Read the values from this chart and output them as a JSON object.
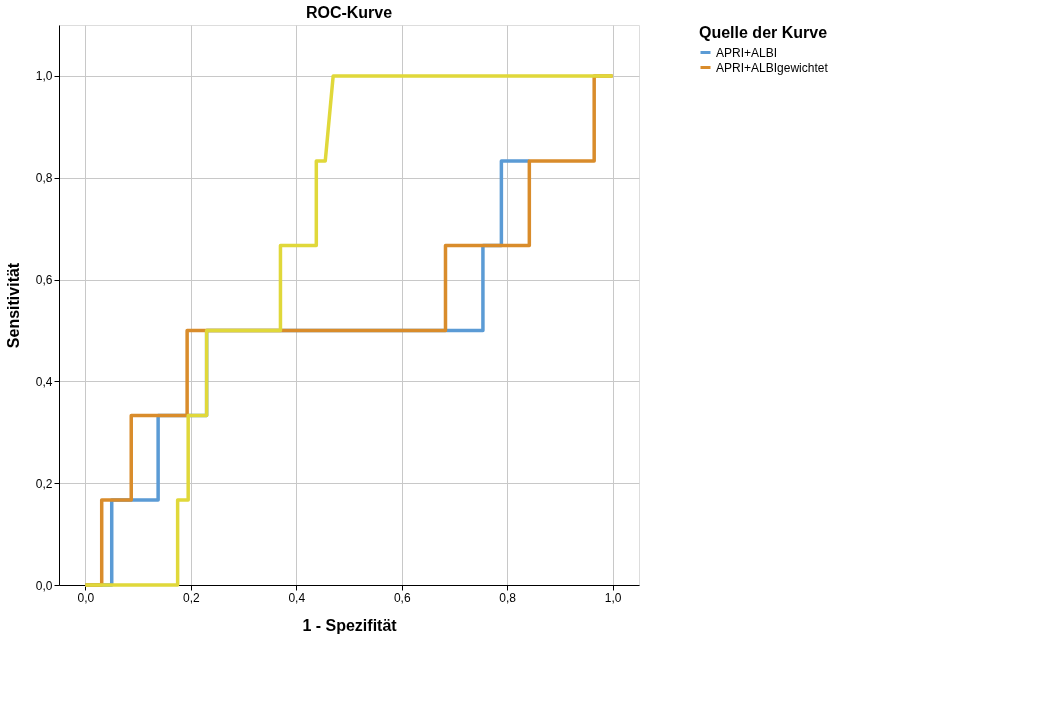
{
  "chart_data": {
    "type": "line",
    "title": "ROC-Kurve",
    "xlabel": "1 - Spezifität",
    "ylabel": "Sensitivität",
    "legend_title": "Quelle der Kurve",
    "xlim": [
      -0.05,
      1.05
    ],
    "ylim": [
      0,
      1.1
    ],
    "xticks": [
      {
        "value": 0,
        "label": "0,0"
      },
      {
        "value": 0.2,
        "label": "0,2"
      },
      {
        "value": 0.4,
        "label": "0,4"
      },
      {
        "value": 0.6,
        "label": "0,6"
      },
      {
        "value": 0.8,
        "label": "0,8"
      },
      {
        "value": 1,
        "label": "1,0"
      }
    ],
    "yticks": [
      {
        "value": 0,
        "label": "0,0"
      },
      {
        "value": 0.2,
        "label": "0,2"
      },
      {
        "value": 0.4,
        "label": "0,4"
      },
      {
        "value": 0.6,
        "label": "0,6"
      },
      {
        "value": 0.8,
        "label": "0,8"
      },
      {
        "value": 1,
        "label": "1,0"
      }
    ],
    "grid": true,
    "legend": "top right",
    "marker": "none",
    "line_style": "solid",
    "series": [
      {
        "name": "APRI+ALBI",
        "color": "#5b9bd5",
        "x": [
          0,
          0.05,
          0.05,
          0.138,
          0.138,
          0.23,
          0.23,
          0.754,
          0.754,
          0.789,
          0.789,
          0.842
        ],
        "values": [
          0,
          0,
          0.167,
          0.167,
          0.333,
          0.333,
          0.5,
          0.5,
          0.667,
          0.667,
          0.833,
          0.833
        ]
      },
      {
        "name": "APRI+ALBIgewichtet",
        "color": "#d98c2b",
        "x": [
          0,
          0.031,
          0.031,
          0.087,
          0.087,
          0.193,
          0.193,
          0.683,
          0.683,
          0.842,
          0.842,
          0.965,
          0.965,
          1
        ],
        "values": [
          0,
          0,
          0.167,
          0.167,
          0.333,
          0.333,
          0.5,
          0.5,
          0.667,
          0.667,
          0.833,
          0.833,
          1,
          1
        ]
      },
      {
        "color": "#e0d83a",
        "x": [
          0,
          0.175,
          0.175,
          0.195,
          0.195,
          0.23,
          0.23,
          0.37,
          0.37,
          0.438,
          0.438,
          0.455,
          0.47,
          1
        ],
        "values": [
          0,
          0,
          0.167,
          0.167,
          0.333,
          0.333,
          0.5,
          0.5,
          0.667,
          0.667,
          0.833,
          0.833,
          1,
          1
        ]
      }
    ]
  }
}
